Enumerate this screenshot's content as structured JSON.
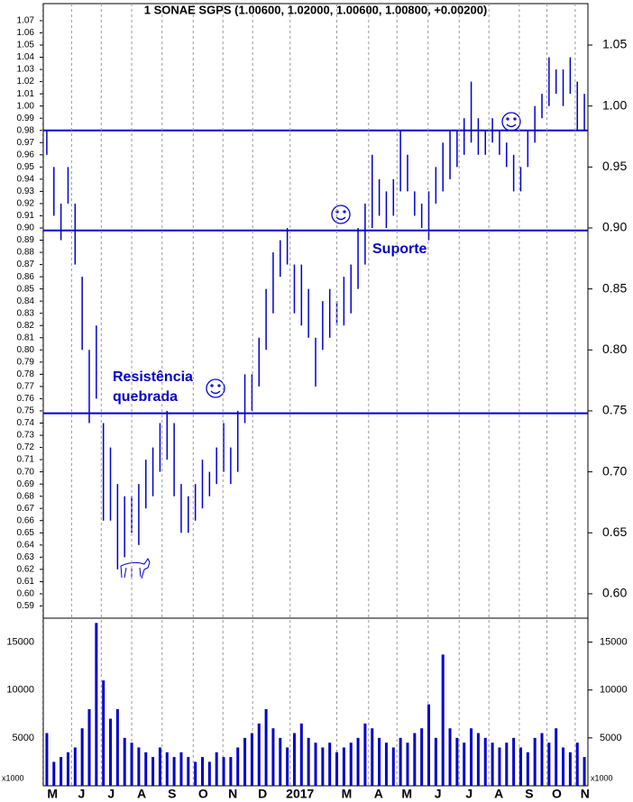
{
  "chart_data": [
    {
      "type": "hilo",
      "title": "1 SONAE SGPS (1.00600, 1.02000, 1.00600, 1.00800, +0.00200)",
      "color": "#0000cc",
      "xlim": [
        0,
        77
      ],
      "ylim": [
        0.58,
        1.084
      ],
      "y2lim": [
        0.58,
        1.084
      ],
      "highs": [
        0.98,
        0.95,
        0.92,
        0.95,
        0.92,
        0.86,
        0.8,
        0.82,
        0.74,
        0.72,
        0.69,
        0.68,
        0.68,
        0.69,
        0.71,
        0.72,
        0.74,
        0.75,
        0.74,
        0.69,
        0.68,
        0.69,
        0.71,
        0.7,
        0.72,
        0.74,
        0.72,
        0.75,
        0.78,
        0.78,
        0.81,
        0.85,
        0.88,
        0.89,
        0.9,
        0.87,
        0.87,
        0.85,
        0.81,
        0.84,
        0.85,
        0.84,
        0.86,
        0.87,
        0.9,
        0.92,
        0.96,
        0.94,
        0.93,
        0.94,
        0.98,
        0.96,
        0.93,
        0.92,
        0.93,
        0.95,
        0.97,
        0.98,
        0.98,
        0.99,
        1.02,
        0.99,
        0.98,
        0.99,
        0.98,
        0.97,
        0.96,
        0.95,
        0.98,
        1.0,
        1.01,
        1.04,
        1.03,
        1.03,
        1.04,
        1.02,
        1.01
      ],
      "lows": [
        0.96,
        0.91,
        0.89,
        0.92,
        0.87,
        0.8,
        0.74,
        0.76,
        0.66,
        0.66,
        0.62,
        0.63,
        0.65,
        0.64,
        0.67,
        0.68,
        0.7,
        0.71,
        0.68,
        0.65,
        0.65,
        0.66,
        0.67,
        0.68,
        0.69,
        0.7,
        0.69,
        0.7,
        0.74,
        0.75,
        0.77,
        0.8,
        0.83,
        0.86,
        0.87,
        0.83,
        0.82,
        0.81,
        0.77,
        0.8,
        0.81,
        0.82,
        0.82,
        0.83,
        0.85,
        0.87,
        0.9,
        0.91,
        0.9,
        0.91,
        0.93,
        0.93,
        0.91,
        0.9,
        0.89,
        0.92,
        0.93,
        0.94,
        0.95,
        0.96,
        0.97,
        0.96,
        0.96,
        0.97,
        0.96,
        0.95,
        0.93,
        0.93,
        0.95,
        0.97,
        0.99,
        1.0,
        1.01,
        1.0,
        1.01,
        0.98,
        0.98
      ],
      "hlines": [
        0.98,
        0.898,
        0.748
      ],
      "annotations": [
        "Resistência",
        "quebrada",
        "Suporte"
      ],
      "yticks": [
        {
          "value": 0.59,
          "label": "0.59"
        },
        {
          "value": 0.6,
          "label": "0.60"
        },
        {
          "value": 0.61,
          "label": "0.61"
        },
        {
          "value": 0.62,
          "label": "0.62"
        },
        {
          "value": 0.63,
          "label": "0.63"
        },
        {
          "value": 0.64,
          "label": "0.64"
        },
        {
          "value": 0.65,
          "label": "0.65"
        },
        {
          "value": 0.66,
          "label": "0.66"
        },
        {
          "value": 0.67,
          "label": "0.67"
        },
        {
          "value": 0.68,
          "label": "0.68"
        },
        {
          "value": 0.69,
          "label": "0.69"
        },
        {
          "value": 0.7,
          "label": "0.70"
        },
        {
          "value": 0.71,
          "label": "0.71"
        },
        {
          "value": 0.72,
          "label": "0.72"
        },
        {
          "value": 0.73,
          "label": "0.73"
        },
        {
          "value": 0.74,
          "label": "0.74"
        },
        {
          "value": 0.75,
          "label": "0.75"
        },
        {
          "value": 0.76,
          "label": "0.76"
        },
        {
          "value": 0.77,
          "label": "0.77"
        },
        {
          "value": 0.78,
          "label": "0.78"
        },
        {
          "value": 0.79,
          "label": "0.79"
        },
        {
          "value": 0.8,
          "label": "0.80"
        },
        {
          "value": 0.81,
          "label": "0.81"
        },
        {
          "value": 0.82,
          "label": "0.82"
        },
        {
          "value": 0.83,
          "label": "0.83"
        },
        {
          "value": 0.84,
          "label": "0.84"
        },
        {
          "value": 0.85,
          "label": "0.85"
        },
        {
          "value": 0.86,
          "label": "0.86"
        },
        {
          "value": 0.87,
          "label": "0.87"
        },
        {
          "value": 0.88,
          "label": "0.88"
        },
        {
          "value": 0.89,
          "label": "0.89"
        },
        {
          "value": 0.9,
          "label": "0.90"
        },
        {
          "value": 0.91,
          "label": "0.91"
        },
        {
          "value": 0.92,
          "label": "0.92"
        },
        {
          "value": 0.93,
          "label": "0.93"
        },
        {
          "value": 0.94,
          "label": "0.94"
        },
        {
          "value": 0.95,
          "label": "0.95"
        },
        {
          "value": 0.96,
          "label": "0.96"
        },
        {
          "value": 0.97,
          "label": "0.97"
        },
        {
          "value": 0.98,
          "label": "0.98"
        },
        {
          "value": 0.99,
          "label": "0.99"
        },
        {
          "value": 1.0,
          "label": "1.00"
        },
        {
          "value": 1.01,
          "label": "1.01"
        },
        {
          "value": 1.02,
          "label": "1.02"
        },
        {
          "value": 1.03,
          "label": "1.03"
        },
        {
          "value": 1.04,
          "label": "1.04"
        },
        {
          "value": 1.05,
          "label": "1.05"
        },
        {
          "value": 1.06,
          "label": "1.06"
        },
        {
          "value": 1.07,
          "label": "1.07"
        }
      ],
      "y2ticks": [
        {
          "value": 0.6,
          "label": "0.60"
        },
        {
          "value": 0.65,
          "label": "0.65"
        },
        {
          "value": 0.7,
          "label": "0.70"
        },
        {
          "value": 0.75,
          "label": "0.75"
        },
        {
          "value": 0.8,
          "label": "0.80"
        },
        {
          "value": 0.85,
          "label": "0.85"
        },
        {
          "value": 0.9,
          "label": "0.90"
        },
        {
          "value": 0.95,
          "label": "0.95"
        },
        {
          "value": 1.0,
          "label": "1.00"
        },
        {
          "value": 1.05,
          "label": "1.05"
        }
      ]
    },
    {
      "type": "bar",
      "color": "#0000cc",
      "xlim": [
        0,
        77
      ],
      "ylim": [
        0,
        17500
      ],
      "values": [
        5500,
        2500,
        3000,
        3500,
        4000,
        6000,
        8000,
        17000,
        11000,
        7000,
        8000,
        5000,
        4500,
        4000,
        3500,
        3000,
        4000,
        3500,
        3000,
        3500,
        3000,
        2500,
        3000,
        2500,
        3500,
        3000,
        3000,
        4000,
        5000,
        5500,
        6500,
        8000,
        6000,
        5000,
        4000,
        5500,
        6500,
        5000,
        4500,
        4000,
        4500,
        3500,
        4000,
        4500,
        5000,
        6500,
        6000,
        5000,
        4500,
        4000,
        5000,
        4500,
        5500,
        6000,
        8500,
        5000,
        13700,
        6000,
        5000,
        4500,
        6000,
        5500,
        5000,
        4500,
        4000,
        4500,
        5000,
        4000,
        3500,
        5000,
        5500,
        4500,
        6000,
        4000,
        3500,
        4500,
        3000
      ],
      "yticks": [
        5000,
        10000,
        15000
      ],
      "unit_label": "x1000",
      "xticks": [
        {
          "value": 1.3,
          "label": "M"
        },
        {
          "value": 5.4,
          "label": "J"
        },
        {
          "value": 9.6,
          "label": "J"
        },
        {
          "value": 13.9,
          "label": "A"
        },
        {
          "value": 18.2,
          "label": "S"
        },
        {
          "value": 22.6,
          "label": "O"
        },
        {
          "value": 26.8,
          "label": "N"
        },
        {
          "value": 31.0,
          "label": "D"
        },
        {
          "value": 36.3,
          "label": "2017"
        },
        {
          "value": 42.9,
          "label": "M"
        },
        {
          "value": 47.4,
          "label": "A"
        },
        {
          "value": 51.4,
          "label": "M"
        },
        {
          "value": 55.8,
          "label": "J"
        },
        {
          "value": 60.2,
          "label": "J"
        },
        {
          "value": 64.4,
          "label": "A"
        },
        {
          "value": 68.7,
          "label": "S"
        },
        {
          "value": 72.6,
          "label": "O"
        },
        {
          "value": 76.6,
          "label": "N"
        }
      ]
    }
  ]
}
